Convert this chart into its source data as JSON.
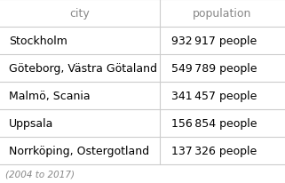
{
  "headers": [
    "city",
    "population"
  ],
  "rows": [
    [
      "Stockholm",
      "932 917 people"
    ],
    [
      "Göteborg, Västra Götaland",
      "549 789 people"
    ],
    [
      "Malmö, Scania",
      "341 457 people"
    ],
    [
      "Uppsala",
      "156 854 people"
    ],
    [
      "Norrköping, Ostergotland",
      "137 326 people"
    ]
  ],
  "footnote": "(2004 to 2017)",
  "bg_color": "#ffffff",
  "header_text_color": "#888888",
  "row_text_color": "#000000",
  "footnote_color": "#888888",
  "line_color": "#cccccc",
  "col_split": 0.56,
  "header_fontsize": 9.0,
  "row_fontsize": 9.0,
  "footnote_fontsize": 7.5
}
